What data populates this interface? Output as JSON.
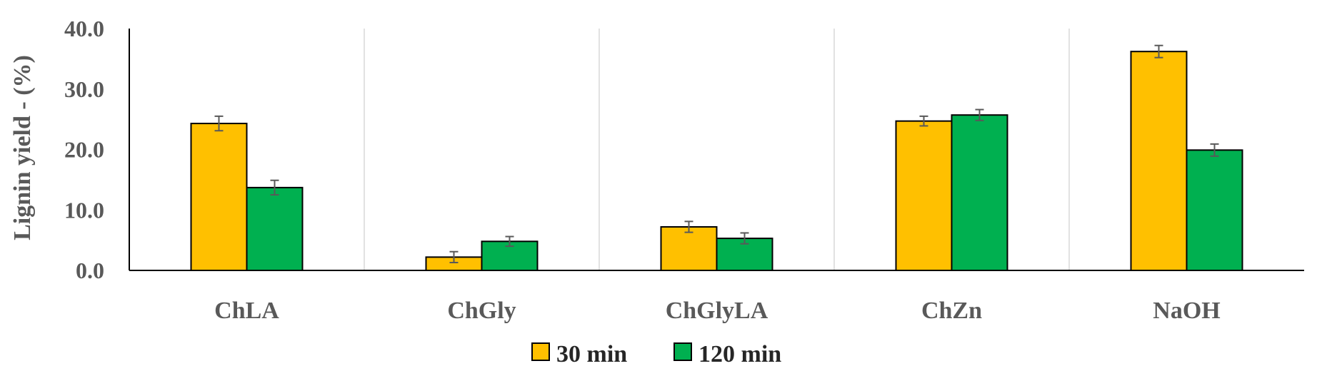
{
  "chart_data": {
    "type": "bar",
    "title": "",
    "xlabel": "",
    "ylabel": "Lignin yield - (%)",
    "ylim": [
      0,
      40
    ],
    "yticks": [
      "0.0",
      "10.0",
      "20.0",
      "30.0",
      "40.0"
    ],
    "categories": [
      "ChLA",
      "ChGly",
      "ChGlyLA",
      "ChZn",
      "NaOH"
    ],
    "series": [
      {
        "name": "30 min",
        "color": "#FFC000",
        "values": [
          24.3,
          2.2,
          7.2,
          24.7,
          36.2
        ],
        "errors": [
          1.2,
          0.9,
          0.9,
          0.8,
          1.0
        ]
      },
      {
        "name": "120 min",
        "color": "#00B050",
        "values": [
          13.7,
          4.8,
          5.3,
          25.7,
          19.9
        ],
        "errors": [
          1.2,
          0.8,
          0.9,
          0.9,
          1.0
        ]
      }
    ],
    "grid": "vertical separators between categories",
    "legend": "bottom-center"
  }
}
